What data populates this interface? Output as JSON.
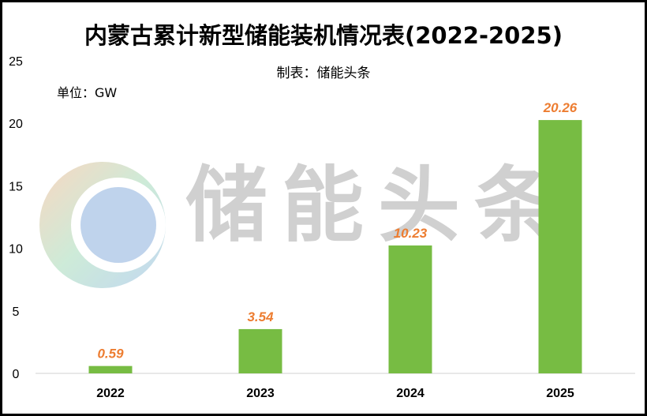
{
  "chart_data": {
    "type": "bar",
    "title": "内蒙古累计新型储能装机情况表(2022-2025)",
    "subtitle": "制表：储能头条",
    "unit_label": "单位：GW",
    "categories": [
      "2022",
      "2023",
      "2024",
      "2025"
    ],
    "values": [
      0.59,
      3.54,
      10.23,
      20.26
    ],
    "data_labels": [
      "0.59",
      "3.54",
      "10.23",
      "20.26"
    ],
    "ylim": [
      0,
      25
    ],
    "yticks": [
      0,
      5,
      10,
      15,
      20,
      25
    ],
    "grid": false,
    "bar_color": "#77BC43",
    "label_color": "#ED7D31"
  },
  "watermark": "储能头条"
}
